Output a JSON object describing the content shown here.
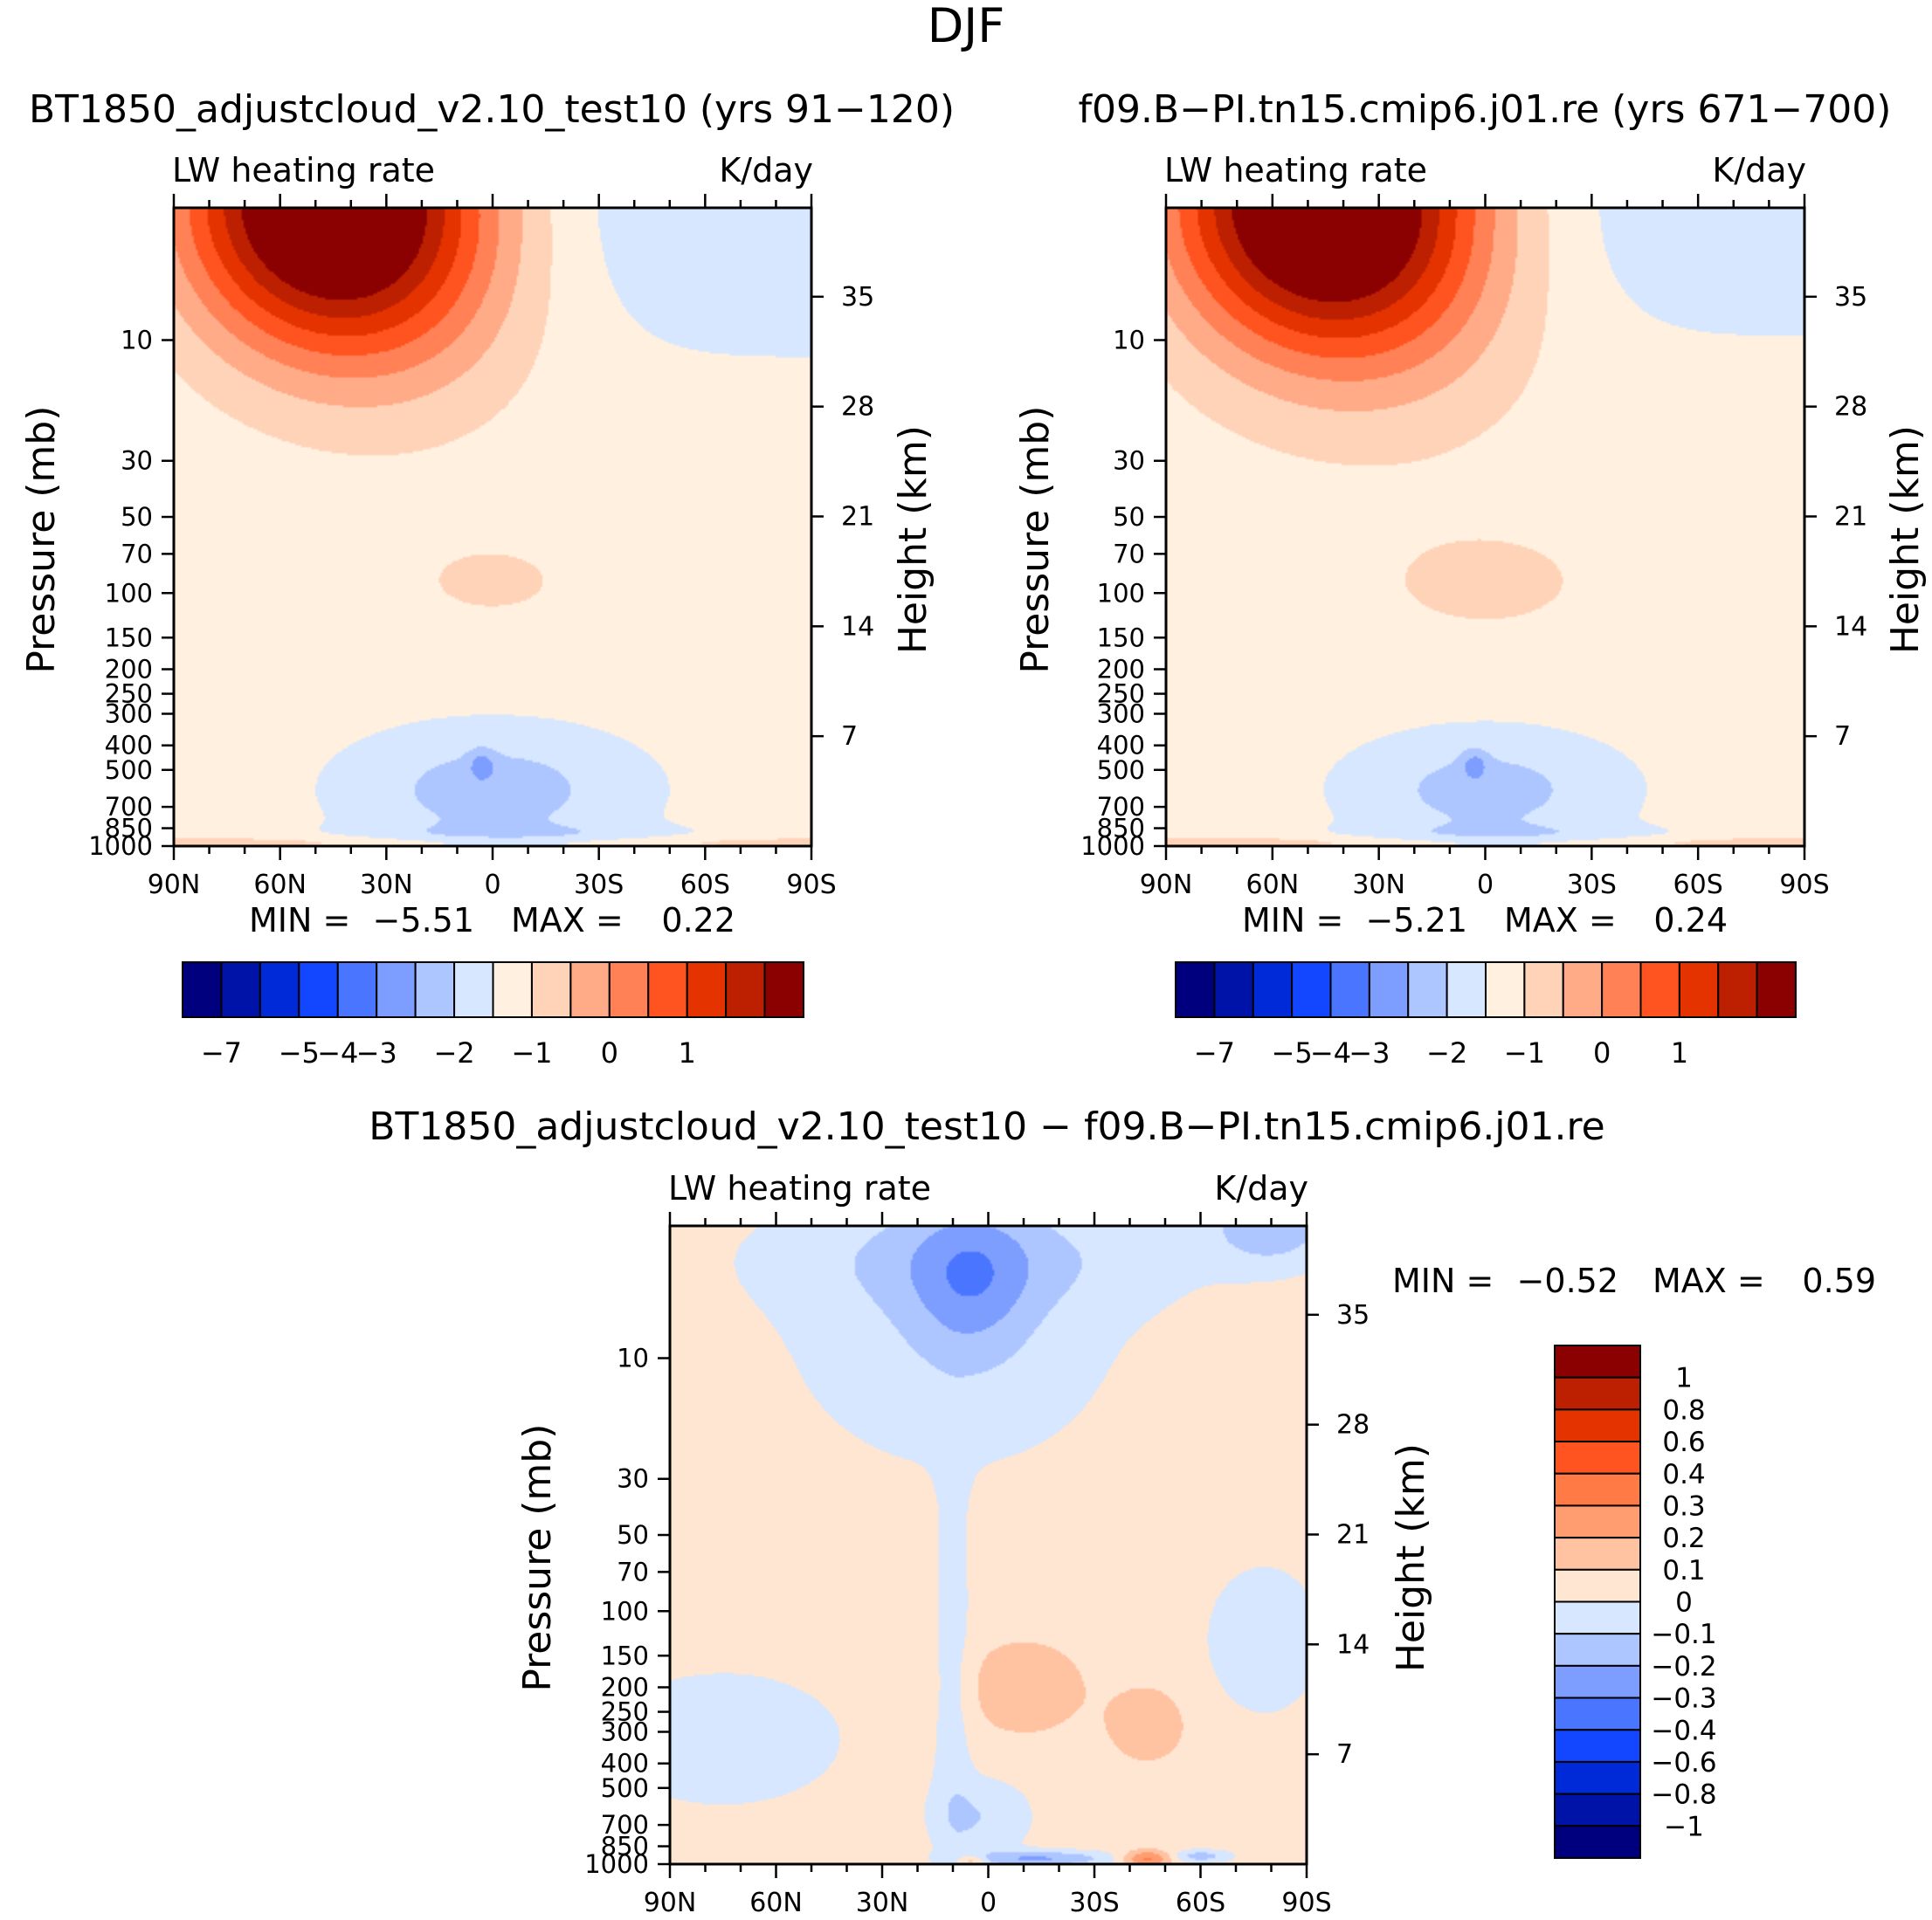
{
  "title": "DJF",
  "colors": {
    "abs_palette": [
      "#00007f",
      "#0013a8",
      "#0029d8",
      "#1346ff",
      "#4a76ff",
      "#7d9eff",
      "#aec6ff",
      "#d6e7ff",
      "#fff0e0",
      "#ffd3b8",
      "#ffab88",
      "#ff8155",
      "#ff5420",
      "#e53300",
      "#bd2000",
      "#8b0000"
    ],
    "diff_palette": [
      "#00007f",
      "#0013a8",
      "#0029d8",
      "#1346ff",
      "#4a76ff",
      "#7d9eff",
      "#aec6ff",
      "#d6e7ff",
      "#ffe6d2",
      "#ffc3a2",
      "#ff9c70",
      "#ff7a45",
      "#ff5420",
      "#e53300",
      "#bd2000",
      "#8b0000"
    ]
  },
  "chart_data": [
    {
      "type": "heatmap",
      "title": "BT1850_adjustcloud_v2.10_test10 (yrs 91-120)",
      "left_label": "LW heating rate",
      "right_label": "K/day",
      "ylabel": "Pressure (mb)",
      "ylabel_right": "Height (km)",
      "xticks": [
        "90N",
        "60N",
        "30N",
        "0",
        "30S",
        "60S",
        "90S"
      ],
      "yticks": [
        "10",
        "30",
        "50",
        "70",
        "100",
        "150",
        "200",
        "250",
        "300",
        "400",
        "500",
        "700",
        "850",
        "1000"
      ],
      "ytick_values": [
        10,
        30,
        50,
        70,
        100,
        150,
        200,
        250,
        300,
        400,
        500,
        700,
        850,
        1000
      ],
      "height_ticks": [
        "35",
        "28",
        "21",
        "14",
        "7"
      ],
      "height_values": [
        35,
        28,
        21,
        14,
        7
      ],
      "ylim": [
        3,
        1000
      ],
      "min_label": "MIN =",
      "min_value": "-5.51",
      "max_label": "MAX =",
      "max_value": "0.22",
      "colorbar_labels": [
        "-7",
        "-5",
        "-4",
        "-3",
        "-2",
        "-1",
        "0",
        "1"
      ],
      "colorbar_levels": [
        -8,
        -7,
        -6,
        -5,
        -4,
        -3,
        -2.5,
        -2,
        -1.5,
        -1,
        -0.5,
        0,
        0.5,
        1,
        1.5,
        2
      ],
      "field_min": -5.51,
      "field_max": 0.22
    },
    {
      "type": "heatmap",
      "title": "f09.B-PI.tn15.cmip6.j01.re (yrs 671-700)",
      "left_label": "LW heating rate",
      "right_label": "K/day",
      "ylabel": "Pressure (mb)",
      "ylabel_right": "Height (km)",
      "xticks": [
        "90N",
        "60N",
        "30N",
        "0",
        "30S",
        "60S",
        "90S"
      ],
      "yticks": [
        "10",
        "30",
        "50",
        "70",
        "100",
        "150",
        "200",
        "250",
        "300",
        "400",
        "500",
        "700",
        "850",
        "1000"
      ],
      "ytick_values": [
        10,
        30,
        50,
        70,
        100,
        150,
        200,
        250,
        300,
        400,
        500,
        700,
        850,
        1000
      ],
      "height_ticks": [
        "35",
        "28",
        "21",
        "14",
        "7"
      ],
      "height_values": [
        35,
        28,
        21,
        14,
        7
      ],
      "ylim": [
        3,
        1000
      ],
      "min_label": "MIN =",
      "min_value": "-5.21",
      "max_label": "MAX =",
      "max_value": "0.24",
      "colorbar_labels": [
        "-7",
        "-5",
        "-4",
        "-3",
        "-2",
        "-1",
        "0",
        "1"
      ],
      "colorbar_levels": [
        -8,
        -7,
        -6,
        -5,
        -4,
        -3,
        -2.5,
        -2,
        -1.5,
        -1,
        -0.5,
        0,
        0.5,
        1,
        1.5,
        2
      ],
      "field_min": -5.21,
      "field_max": 0.24
    },
    {
      "type": "heatmap",
      "title": "BT1850_adjustcloud_v2.10_test10 - f09.B-PI.tn15.cmip6.j01.re",
      "left_label": "LW heating rate",
      "right_label": "K/day",
      "ylabel": "Pressure (mb)",
      "ylabel_right": "Height (km)",
      "xticks": [
        "90N",
        "60N",
        "30N",
        "0",
        "30S",
        "60S",
        "90S"
      ],
      "yticks": [
        "10",
        "30",
        "50",
        "70",
        "100",
        "150",
        "200",
        "250",
        "300",
        "400",
        "500",
        "700",
        "850",
        "1000"
      ],
      "ytick_values": [
        10,
        30,
        50,
        70,
        100,
        150,
        200,
        250,
        300,
        400,
        500,
        700,
        850,
        1000
      ],
      "height_ticks": [
        "35",
        "28",
        "21",
        "14",
        "7"
      ],
      "height_values": [
        35,
        28,
        21,
        14,
        7
      ],
      "ylim": [
        3,
        1000
      ],
      "min_label": "MIN =",
      "min_value": "-0.52",
      "max_label": "MAX =",
      "max_value": "0.59",
      "colorbar_labels": [
        "1",
        "0.8",
        "0.6",
        "0.4",
        "0.3",
        "0.2",
        "0.1",
        "0",
        "-0.1",
        "-0.2",
        "-0.3",
        "-0.4",
        "-0.6",
        "-0.8",
        "-1"
      ],
      "colorbar_levels": [
        -1,
        -0.8,
        -0.6,
        -0.4,
        -0.3,
        -0.2,
        -0.1,
        0,
        0.1,
        0.2,
        0.3,
        0.4,
        0.6,
        0.8,
        1
      ],
      "field_min": -0.52,
      "field_max": 0.59
    }
  ]
}
